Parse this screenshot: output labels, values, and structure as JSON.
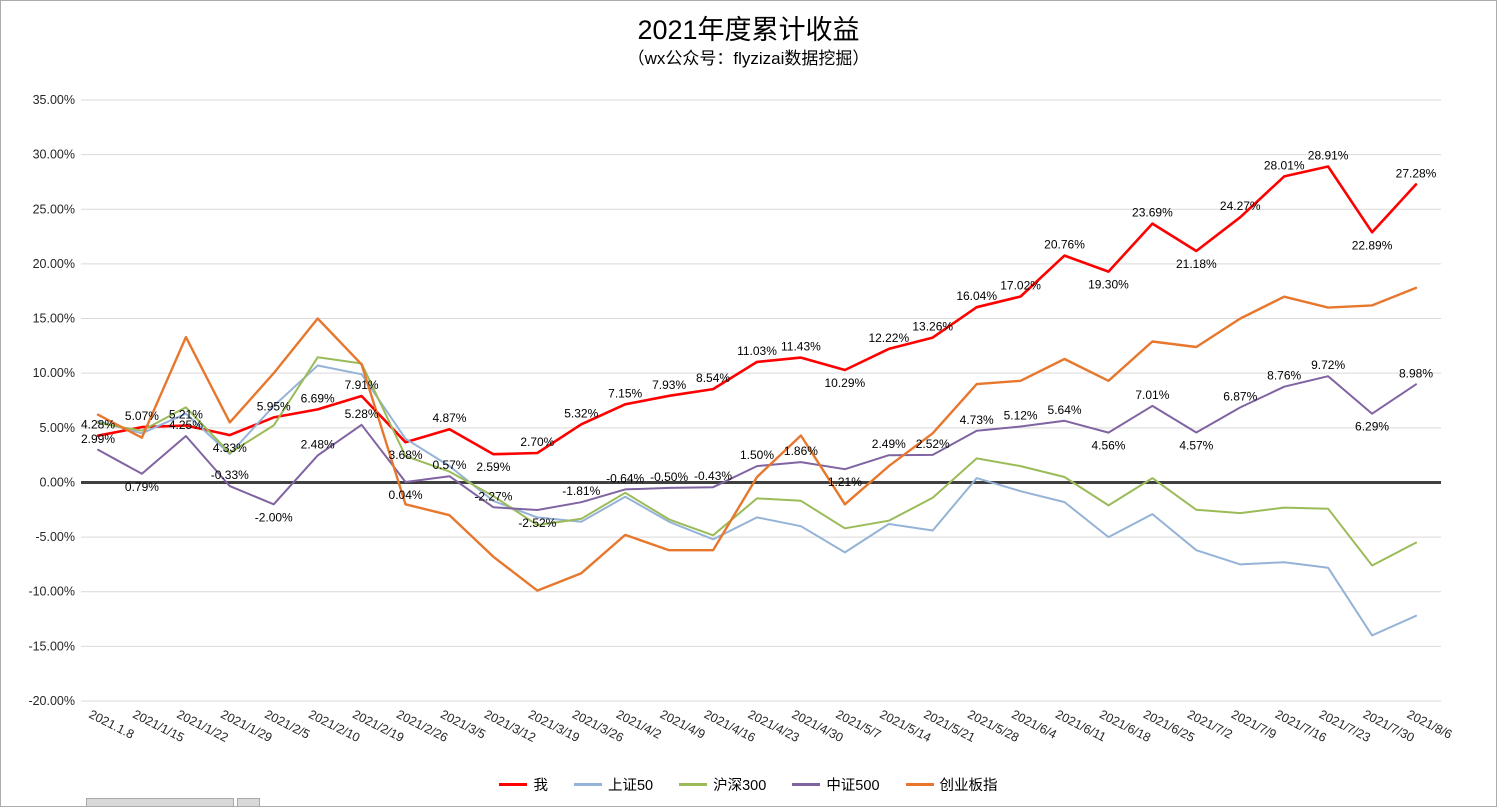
{
  "page": {
    "background": "#FFFFFF",
    "border_color": "#ABABAB"
  },
  "chart_data": {
    "type": "line",
    "title": "2021年度累计收益",
    "subtitle": "（wx公众号：flyzizai数据挖掘）",
    "xlabel": "",
    "ylabel": "",
    "ylim": [
      -20,
      35
    ],
    "grid": true,
    "legend_position": "bottom",
    "gridline_color": "#D9D9D9",
    "zero_line_color": "#404040",
    "y_ticks": [
      "35.00%",
      "30.00%",
      "25.00%",
      "20.00%",
      "15.00%",
      "10.00%",
      "5.00%",
      "0.00%",
      "-5.00%",
      "-10.00%",
      "-15.00%",
      "-20.00%"
    ],
    "categories": [
      "2021.1.8",
      "2021/1/15",
      "2021/1/22",
      "2021/1/29",
      "2021/2/5",
      "2021/2/10",
      "2021/2/19",
      "2021/2/26",
      "2021/3/5",
      "2021/3/12",
      "2021/3/19",
      "2021/3/26",
      "2021/4/2",
      "2021/4/9",
      "2021/4/16",
      "2021/4/23",
      "2021/4/30",
      "2021/5/7",
      "2021/5/14",
      "2021/5/21",
      "2021/5/28",
      "2021/6/4",
      "2021/6/11",
      "2021/6/18",
      "2021/6/25",
      "2021/7/2",
      "2021/7/9",
      "2021/7/16",
      "2021/7/23",
      "2021/7/30",
      "2021/8/6"
    ],
    "series": [
      {
        "name": "我",
        "color": "#FF0000",
        "line_width": 2.6,
        "show_data_labels": true,
        "values": [
          4.28,
          5.07,
          5.21,
          4.33,
          5.95,
          6.69,
          7.91,
          3.68,
          4.87,
          2.59,
          2.7,
          5.32,
          7.15,
          7.93,
          8.54,
          11.03,
          11.43,
          10.29,
          12.22,
          13.26,
          16.04,
          17.02,
          20.76,
          19.3,
          23.69,
          21.18,
          24.27,
          28.01,
          28.91,
          22.89,
          27.28
        ]
      },
      {
        "name": "上证50",
        "color": "#95B3D7",
        "line_width": 2,
        "show_data_labels": false,
        "values": [
          5.6,
          4.5,
          6.3,
          2.6,
          7.0,
          10.7,
          9.9,
          4.0,
          1.5,
          -1.7,
          -3.2,
          -3.6,
          -1.3,
          -3.6,
          -5.2,
          -3.2,
          -4.0,
          -6.4,
          -3.8,
          -4.4,
          0.4,
          -0.8,
          -1.8,
          -5.0,
          -2.9,
          -6.2,
          -7.5,
          -7.3,
          -7.8,
          -14.0,
          -12.2
        ]
      },
      {
        "name": "沪深300",
        "color": "#9BBB59",
        "line_width": 2,
        "show_data_labels": false,
        "values": [
          5.45,
          4.74,
          6.88,
          2.7,
          5.22,
          11.45,
          10.89,
          2.41,
          0.99,
          -1.25,
          -3.9,
          -3.33,
          -0.95,
          -3.38,
          -4.84,
          -1.46,
          -1.68,
          -4.2,
          -3.5,
          -1.4,
          2.2,
          1.5,
          0.5,
          -2.1,
          0.4,
          -2.5,
          -2.8,
          -2.3,
          -2.4,
          -7.6,
          -5.5
        ]
      },
      {
        "name": "中证500",
        "color": "#8064A2",
        "line_width": 2,
        "show_data_labels": true,
        "values": [
          2.99,
          0.79,
          4.25,
          -0.33,
          -2.0,
          2.48,
          5.28,
          0.04,
          0.57,
          -2.27,
          -2.52,
          -1.81,
          -0.64,
          -0.5,
          -0.43,
          1.5,
          1.86,
          1.21,
          2.49,
          2.52,
          4.73,
          5.12,
          5.64,
          4.56,
          7.01,
          4.57,
          6.87,
          8.76,
          9.72,
          6.29,
          8.98
        ]
      },
      {
        "name": "创业板指",
        "color": "#E8772E",
        "line_width": 2.4,
        "show_data_labels": false,
        "values": [
          6.2,
          4.1,
          13.3,
          5.5,
          10.0,
          15.0,
          10.8,
          -2.0,
          -3.0,
          -6.8,
          -9.9,
          -8.3,
          -4.8,
          -6.2,
          -6.2,
          0.5,
          4.3,
          -2.0,
          1.5,
          4.5,
          9.0,
          9.3,
          11.3,
          9.3,
          12.9,
          12.4,
          15.0,
          17.0,
          16.0,
          16.2,
          17.8
        ]
      }
    ]
  }
}
